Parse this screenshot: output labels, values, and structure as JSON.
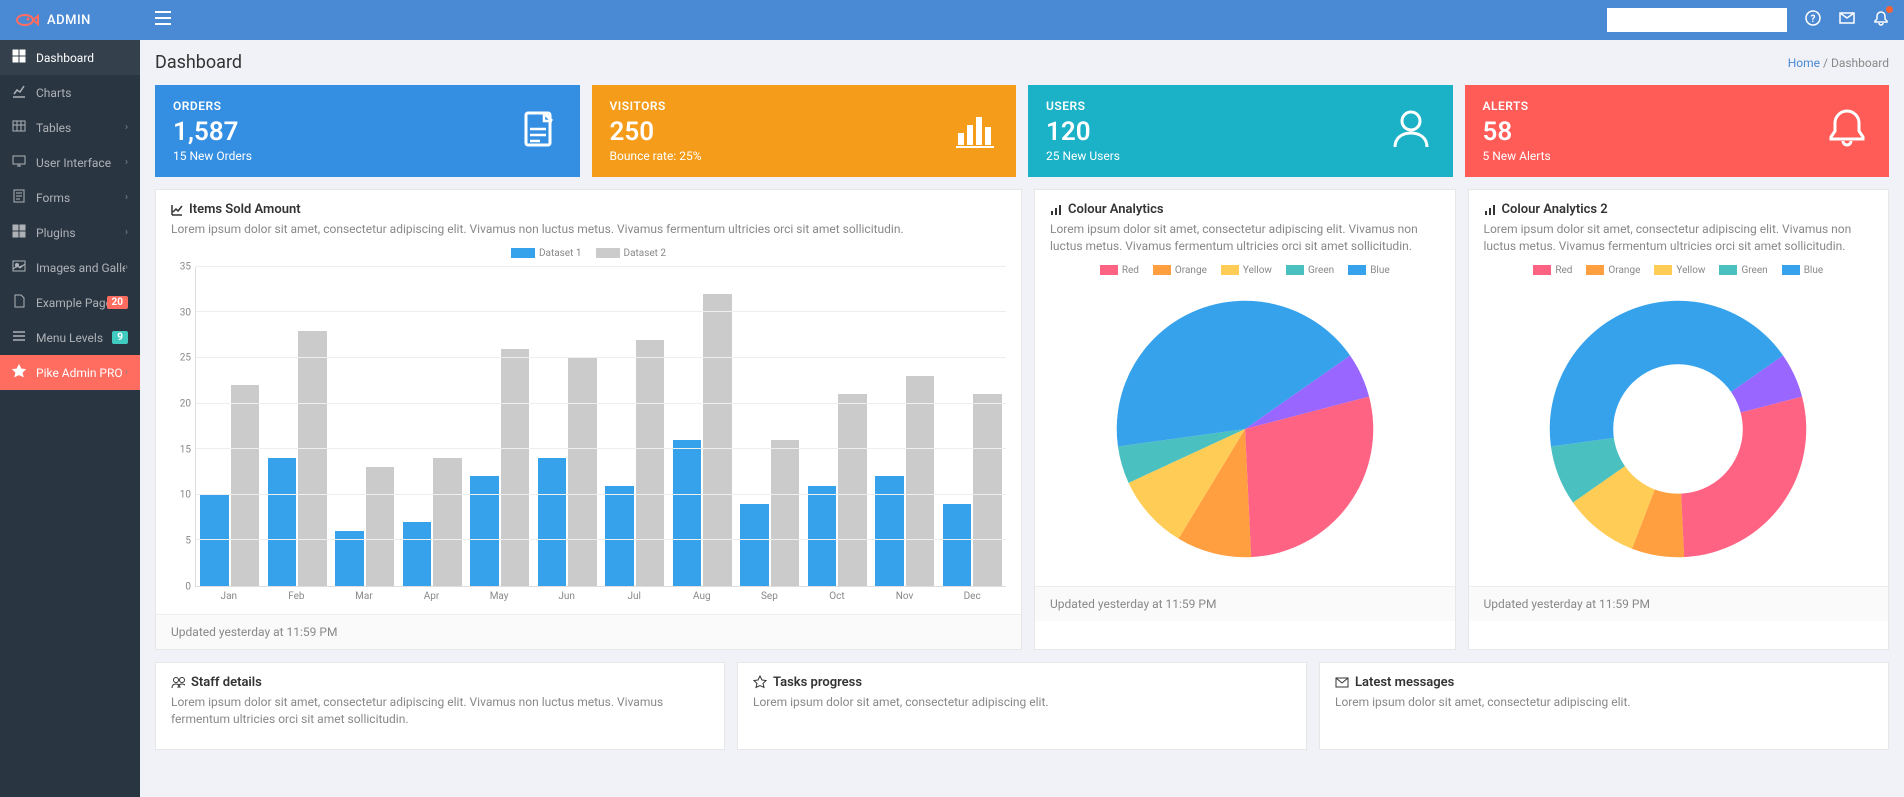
{
  "brand": "ADMIN",
  "page_title": "Dashboard",
  "breadcrumb": {
    "home": "Home",
    "current": "Dashboard"
  },
  "sidebar": [
    {
      "icon": "dashboard",
      "label": "Dashboard",
      "active": true
    },
    {
      "icon": "chart",
      "label": "Charts"
    },
    {
      "icon": "table",
      "label": "Tables",
      "caret": true
    },
    {
      "icon": "desktop",
      "label": "User Interface",
      "caret": true
    },
    {
      "icon": "form",
      "label": "Forms",
      "caret": true
    },
    {
      "icon": "plugin",
      "label": "Plugins",
      "caret": true
    },
    {
      "icon": "image",
      "label": "Images and Galleries",
      "caret": true
    },
    {
      "icon": "file",
      "label": "Example Pages",
      "badge": "20",
      "badge_color": "#ff6c60"
    },
    {
      "icon": "menu",
      "label": "Menu Levels",
      "badge": "9",
      "badge_color": "#41cac0"
    },
    {
      "icon": "star",
      "label": "Pike Admin PRO",
      "highlight": true,
      "caret": true
    }
  ],
  "stats": [
    {
      "label": "ORDERS",
      "value": "1,587",
      "sub": "15 New Orders",
      "color": "#348fe2",
      "icon": "document"
    },
    {
      "label": "VISITORS",
      "value": "250",
      "sub": "Bounce rate: 25%",
      "color": "#f59c1a",
      "icon": "bars"
    },
    {
      "label": "USERS",
      "value": "120",
      "sub": "25 New Users",
      "color": "#1bb1c7",
      "icon": "user"
    },
    {
      "label": "ALERTS",
      "value": "58",
      "sub": "5 New Alerts",
      "color": "#ff5b57",
      "icon": "bell"
    }
  ],
  "items_sold": {
    "title": "Items Sold Amount",
    "desc": "Lorem ipsum dolor sit amet, consectetur adipiscing elit. Vivamus non luctus metus. Vivamus fermentum ultricies orci sit amet sollicitudin.",
    "legend": [
      {
        "label": "Dataset 1",
        "color": "#36a2eb"
      },
      {
        "label": "Dataset 2",
        "color": "#cbcbcb"
      }
    ],
    "y_max": 35,
    "y_step": 5,
    "categories": [
      "Jan",
      "Feb",
      "Mar",
      "Apr",
      "May",
      "Jun",
      "Jul",
      "Aug",
      "Sep",
      "Oct",
      "Nov",
      "Dec"
    ],
    "dataset1": [
      10,
      14,
      6,
      7,
      12,
      14,
      11,
      16,
      9,
      11,
      12,
      9
    ],
    "dataset2": [
      22,
      28,
      13,
      14,
      26,
      25,
      27,
      32,
      16,
      21,
      23,
      21
    ],
    "footer": "Updated yesterday at 11:59 PM"
  },
  "colour1": {
    "title": "Colour Analytics",
    "desc": "Lorem ipsum dolor sit amet, consectetur adipiscing elit. Vivamus non luctus metus. Vivamus fermentum ultricies orci sit amet sollicitudin.",
    "type": "pie",
    "labels": [
      "Red",
      "Orange",
      "Yellow",
      "Green",
      "Blue"
    ],
    "values": [
      30,
      10,
      10,
      5,
      45
    ],
    "colors": [
      "#ff6384",
      "#ff9f40",
      "#ffcd56",
      "#4bc0c0",
      "#36a2eb"
    ],
    "extra_slice_color": "#9966ff",
    "footer": "Updated yesterday at 11:59 PM"
  },
  "colour2": {
    "title": "Colour Analytics 2",
    "desc": "Lorem ipsum dolor sit amet, consectetur adipiscing elit. Vivamus non luctus metus. Vivamus fermentum ultricies orci sit amet sollicitudin.",
    "type": "doughnut",
    "labels": [
      "Red",
      "Orange",
      "Yellow",
      "Green",
      "Blue"
    ],
    "values": [
      30,
      7,
      10,
      8,
      45
    ],
    "colors": [
      "#ff6384",
      "#ff9f40",
      "#ffcd56",
      "#4bc0c0",
      "#36a2eb"
    ],
    "extra_slice_color": "#9966ff",
    "footer": "Updated yesterday at 11:59 PM"
  },
  "bottom": [
    {
      "icon": "users",
      "title": "Staff details",
      "desc": "Lorem ipsum dolor sit amet, consectetur adipiscing elit. Vivamus non luctus metus. Vivamus fermentum ultricies orci sit amet sollicitudin."
    },
    {
      "icon": "star",
      "title": "Tasks progress",
      "desc": "Lorem ipsum dolor sit amet, consectetur adipiscing elit."
    },
    {
      "icon": "envelope",
      "title": "Latest messages",
      "desc": "Lorem ipsum dolor sit amet, consectetur adipiscing elit."
    }
  ]
}
